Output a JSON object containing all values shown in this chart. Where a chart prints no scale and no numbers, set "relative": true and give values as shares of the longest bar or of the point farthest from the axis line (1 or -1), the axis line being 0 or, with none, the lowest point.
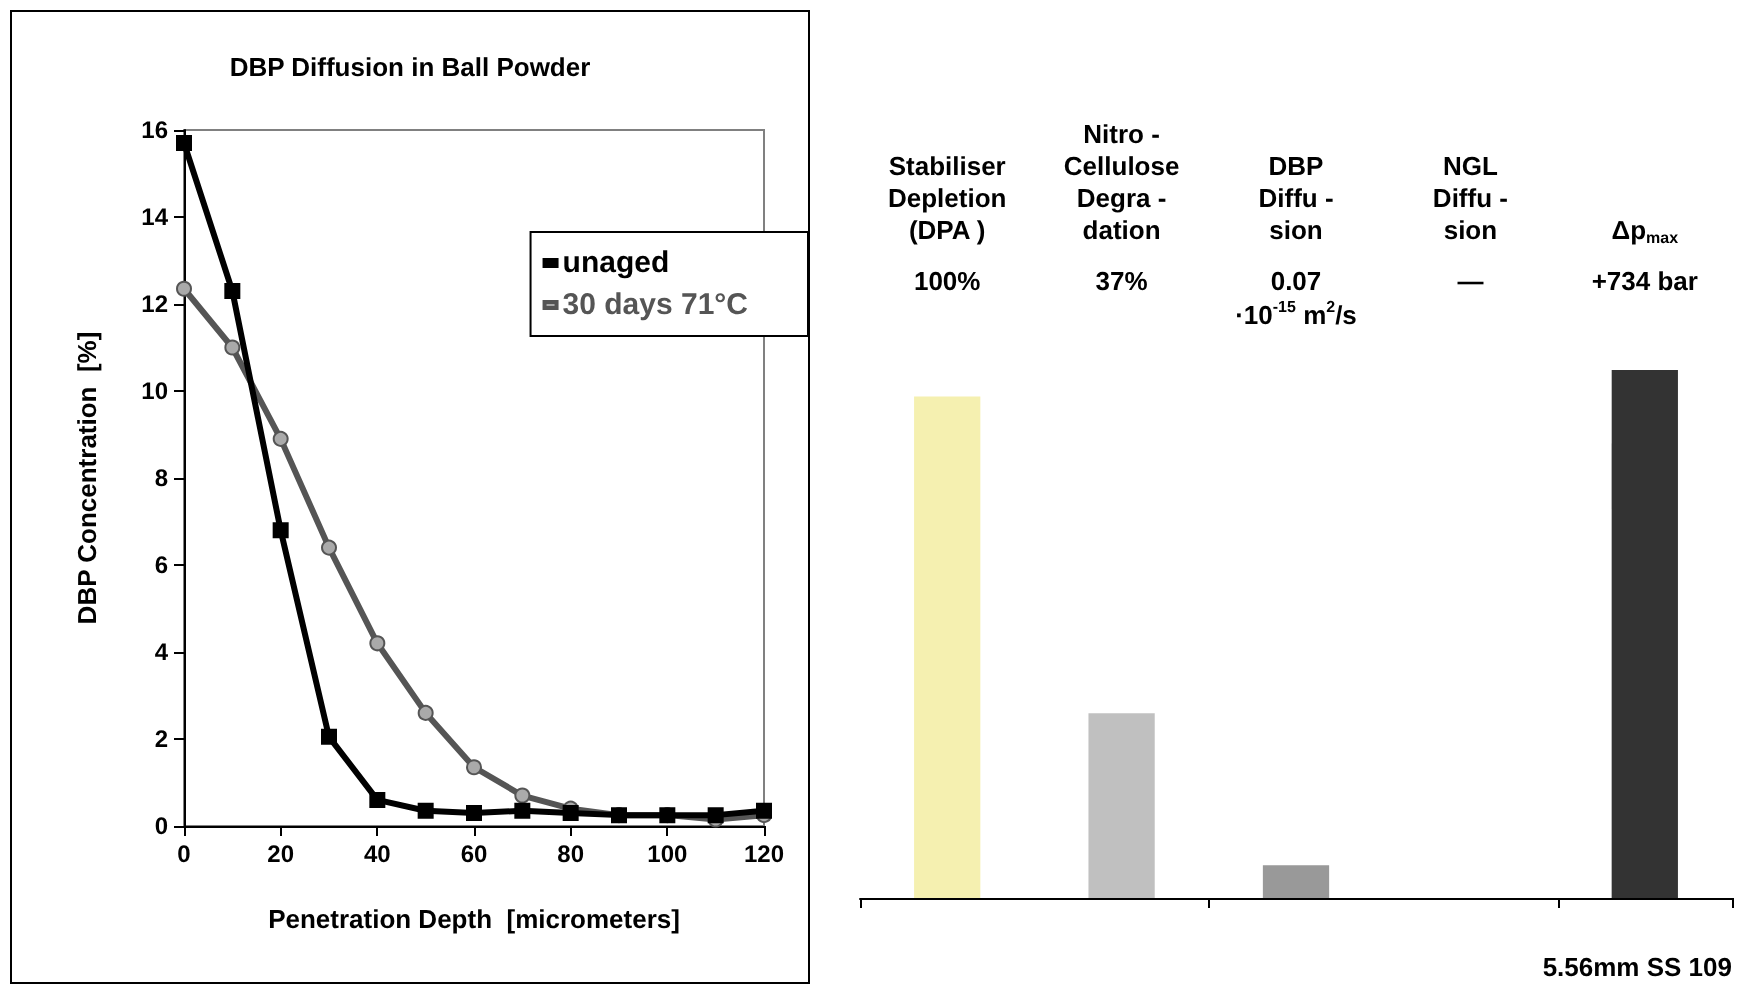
{
  "chart_data": [
    {
      "type": "line",
      "title": "DBP Diffusion in Ball Powder",
      "xlabel": "Penetration Depth  [micrometers]",
      "ylabel": "DBP Concentration  [%]",
      "x": [
        0,
        10,
        20,
        30,
        40,
        50,
        60,
        70,
        80,
        90,
        100,
        110,
        120
      ],
      "series": [
        {
          "name": "unaged",
          "color": "#000000",
          "marker": "square",
          "values": [
            15.7,
            12.3,
            6.8,
            2.05,
            0.6,
            0.35,
            0.3,
            0.35,
            0.3,
            0.25,
            0.25,
            0.25,
            0.35
          ]
        },
        {
          "name": "30 days 71°C",
          "color": "#555555",
          "marker": "circle",
          "values": [
            12.35,
            11.0,
            8.9,
            6.4,
            4.2,
            2.6,
            1.35,
            0.7,
            0.4,
            0.25,
            0.25,
            0.15,
            0.25
          ]
        }
      ],
      "xlim": [
        0,
        120
      ],
      "xticks": [
        0,
        20,
        40,
        60,
        80,
        100,
        120
      ],
      "ylim": [
        0,
        16
      ],
      "yticks": [
        0,
        2,
        4,
        6,
        8,
        10,
        12,
        14,
        16
      ],
      "grid": false,
      "legend": "top right",
      "line_style": "solid"
    },
    {
      "type": "bar",
      "relative": true,
      "xlabel": "5.56mm SS 109",
      "categories": [
        "Stabiliser\nDepletion\n(DPA )",
        "Nitro -\nCellulose\nDegra -\ndation",
        "DBP\nDiffu -\nsion",
        "NGL\nDiffu -\nsion",
        "Δp$_{max}$"
      ],
      "values": [
        0.95,
        0.35,
        0.062,
        0,
        1
      ],
      "colors": [
        "#f5f0b0",
        "#c0c0c0",
        "#999999",
        "#555555",
        "#333333"
      ],
      "annotations": [
        "100%",
        "37%",
        "0.07\n·10$^{-15}$ m$^{2}$/s",
        "—",
        "+734 bar"
      ]
    }
  ]
}
